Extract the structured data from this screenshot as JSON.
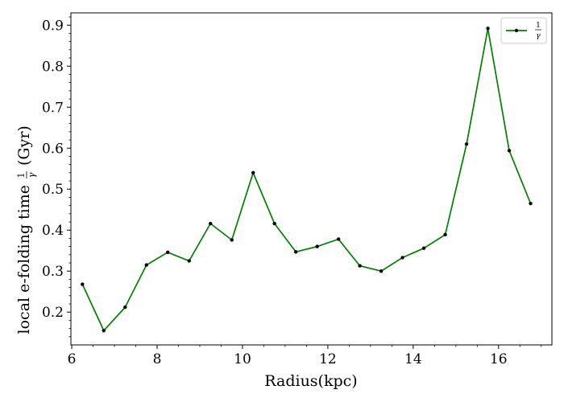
{
  "chart_data": {
    "type": "line",
    "xlabel": "Radius(kpc)",
    "ylabel": "local e-folding time",
    "ylabel_fraction": {
      "numerator": "1",
      "denominator": "γ"
    },
    "ylabel_unit": "(Gyr)",
    "xlim": [
      5.98,
      17.25
    ],
    "ylim": [
      0.12,
      0.93
    ],
    "x_ticks": [
      6,
      8,
      10,
      12,
      14,
      16
    ],
    "y_ticks": [
      0.2,
      0.3,
      0.4,
      0.5,
      0.6,
      0.7,
      0.8,
      0.9
    ],
    "x_tick_labels": [
      "6",
      "8",
      "10",
      "12",
      "14",
      "16"
    ],
    "y_tick_labels": [
      "0.2",
      "0.3",
      "0.4",
      "0.5",
      "0.6",
      "0.7",
      "0.8",
      "0.9"
    ],
    "grid": false,
    "legend_position": "top-right",
    "series": [
      {
        "name_fraction": {
          "numerator": "1",
          "denominator": "γ"
        },
        "color": "#008000",
        "marker_color": "#000000",
        "x": [
          6.25,
          6.75,
          7.25,
          7.75,
          8.25,
          8.75,
          9.25,
          9.75,
          10.25,
          10.75,
          11.25,
          11.75,
          12.25,
          12.75,
          13.25,
          13.75,
          14.25,
          14.75,
          15.25,
          15.75,
          16.25,
          16.75
        ],
        "y": [
          0.268,
          0.155,
          0.212,
          0.315,
          0.346,
          0.325,
          0.416,
          0.376,
          0.54,
          0.416,
          0.347,
          0.36,
          0.378,
          0.313,
          0.3,
          0.333,
          0.356,
          0.389,
          0.61,
          0.892,
          0.594,
          0.465
        ]
      }
    ]
  }
}
